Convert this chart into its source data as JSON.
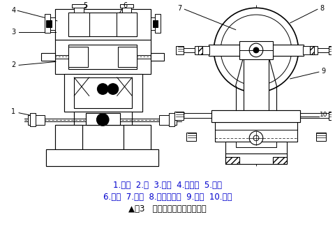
{
  "caption_line1": "1.螺钉  2.轴  3.端盖  4.接触轮  5.轴承",
  "caption_line2": "6.螺钉  7.压板  8.微调螺钉副  9.支架  10.螺栓",
  "caption_line3": "▲图3   开式砂带磨削接触轮结构",
  "caption_color": "#0000cd",
  "bg_color": "#ffffff",
  "line_color": "#000000",
  "fig_width": 4.81,
  "fig_height": 3.54,
  "dpi": 100
}
